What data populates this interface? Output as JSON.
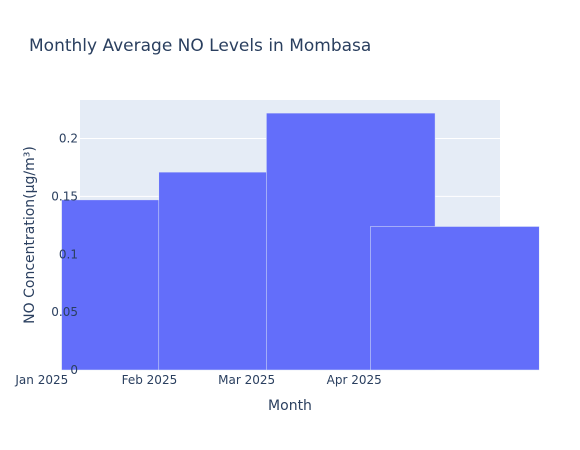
{
  "chart_data": {
    "type": "bar",
    "title": "Monthly Average NO Levels in Mombasa",
    "xlabel": "Month",
    "ylabel": "NO Concentration(µg/m³)",
    "categories": [
      "Jan 2025",
      "Feb 2025",
      "Mar 2025",
      "Apr 2025"
    ],
    "x_dates": [
      "2025-01-31",
      "2025-02-28",
      "2025-03-31",
      "2025-04-30"
    ],
    "values": [
      0.147,
      0.171,
      0.222,
      0.124
    ],
    "ylim": [
      0,
      0.2333
    ],
    "yticks": [
      0,
      0.05,
      0.1,
      0.15,
      0.2
    ],
    "ytick_labels": [
      "0",
      "0.05",
      "0.1",
      "0.15",
      "0.2"
    ],
    "grid": true,
    "legend": "none",
    "colors": {
      "bar": "#636efa",
      "plot_bg": "#e5ecf6",
      "grid": "#ffffff",
      "text": "#2a3f5f"
    }
  }
}
